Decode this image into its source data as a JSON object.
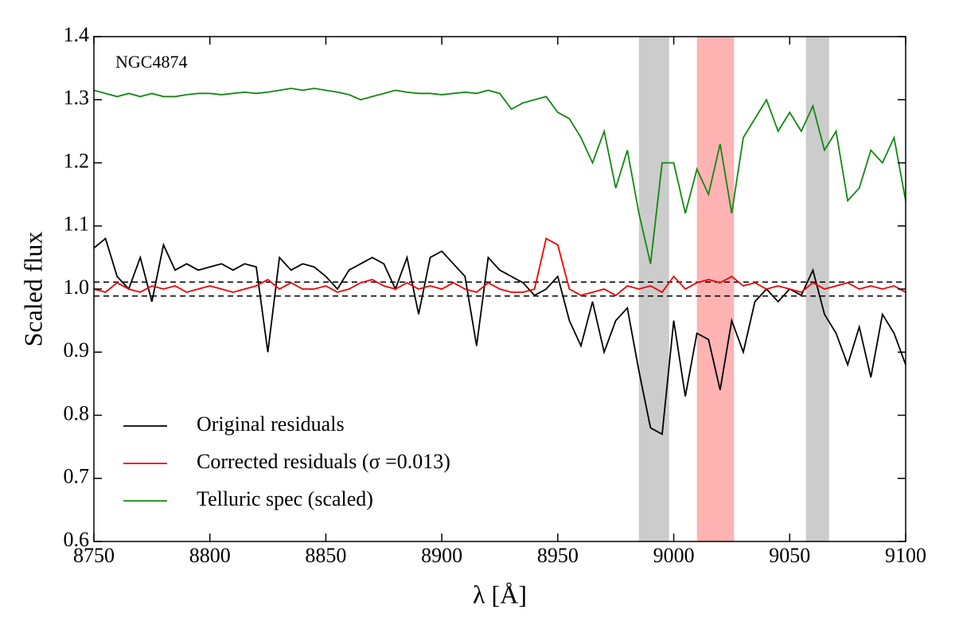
{
  "chart_data": {
    "type": "line",
    "annotation": "NGC4874",
    "xlabel": "λ [Å]",
    "ylabel": "Scaled flux",
    "x": [
      8750,
      8755,
      8760,
      8765,
      8770,
      8775,
      8780,
      8785,
      8790,
      8795,
      8800,
      8805,
      8810,
      8815,
      8820,
      8825,
      8830,
      8835,
      8840,
      8845,
      8850,
      8855,
      8860,
      8865,
      8870,
      8875,
      8880,
      8885,
      8890,
      8895,
      8900,
      8905,
      8910,
      8915,
      8920,
      8925,
      8930,
      8935,
      8940,
      8945,
      8950,
      8955,
      8960,
      8965,
      8970,
      8975,
      8980,
      8985,
      8990,
      8995,
      9000,
      9005,
      9010,
      9015,
      9020,
      9025,
      9030,
      9035,
      9040,
      9045,
      9050,
      9055,
      9060,
      9065,
      9070,
      9075,
      9080,
      9085,
      9090,
      9095,
      9100
    ],
    "series": [
      {
        "name": "Original residuals",
        "color": "#000000",
        "values": [
          1.065,
          1.08,
          1.02,
          1.0,
          1.05,
          0.98,
          1.07,
          1.03,
          1.04,
          1.03,
          1.035,
          1.04,
          1.03,
          1.04,
          1.035,
          0.9,
          1.05,
          1.03,
          1.04,
          1.035,
          1.02,
          1.0,
          1.03,
          1.04,
          1.05,
          1.04,
          1.0,
          1.05,
          0.96,
          1.05,
          1.06,
          1.04,
          1.02,
          0.91,
          1.05,
          1.03,
          1.02,
          1.01,
          0.99,
          1.0,
          1.02,
          0.95,
          0.91,
          0.98,
          0.9,
          0.95,
          0.97,
          0.87,
          0.78,
          0.77,
          0.95,
          0.83,
          0.93,
          0.92,
          0.84,
          0.95,
          0.9,
          0.98,
          1.0,
          0.98,
          1.0,
          0.99,
          1.03,
          0.96,
          0.93,
          0.88,
          0.94,
          0.86,
          0.96,
          0.93,
          0.88
        ]
      },
      {
        "name": "Corrected residuals (σ =0.013)",
        "color": "#ee0000",
        "values": [
          1.0,
          0.995,
          1.01,
          1.0,
          0.995,
          1.005,
          1.0,
          1.005,
          0.995,
          1.0,
          1.005,
          1.0,
          0.995,
          1.0,
          1.005,
          1.015,
          1.0,
          1.01,
          1.0,
          1.0,
          1.005,
          0.995,
          1.0,
          1.01,
          1.015,
          1.005,
          1.0,
          1.01,
          1.0,
          1.005,
          1.0,
          1.01,
          1.0,
          0.995,
          1.01,
          1.0,
          0.995,
          0.995,
          1.0,
          1.08,
          1.07,
          1.0,
          0.99,
          0.995,
          1.0,
          0.99,
          1.005,
          1.0,
          1.005,
          0.995,
          1.02,
          1.0,
          1.01,
          1.015,
          1.01,
          1.02,
          1.005,
          1.01,
          1.0,
          1.005,
          1.0,
          0.995,
          1.01,
          1.0,
          1.005,
          1.01,
          1.0,
          1.005,
          1.0,
          1.005,
          0.995
        ]
      },
      {
        "name": "Telluric spec (scaled)",
        "color": "#118811",
        "values": [
          1.315,
          1.31,
          1.305,
          1.31,
          1.305,
          1.31,
          1.305,
          1.305,
          1.308,
          1.31,
          1.31,
          1.308,
          1.31,
          1.312,
          1.31,
          1.312,
          1.315,
          1.318,
          1.315,
          1.318,
          1.315,
          1.312,
          1.308,
          1.3,
          1.305,
          1.31,
          1.315,
          1.312,
          1.31,
          1.31,
          1.308,
          1.31,
          1.312,
          1.31,
          1.315,
          1.31,
          1.285,
          1.295,
          1.3,
          1.305,
          1.28,
          1.27,
          1.24,
          1.2,
          1.25,
          1.16,
          1.22,
          1.12,
          1.04,
          1.2,
          1.2,
          1.12,
          1.19,
          1.15,
          1.23,
          1.12,
          1.24,
          1.27,
          1.3,
          1.25,
          1.28,
          1.25,
          1.29,
          1.22,
          1.25,
          1.14,
          1.16,
          1.22,
          1.2,
          1.24,
          1.14
        ]
      }
    ],
    "bands": [
      {
        "x": [
          8985,
          8998
        ],
        "color": "#cccccc"
      },
      {
        "x": [
          9010,
          9026
        ],
        "color": "#ffb3b3"
      },
      {
        "x": [
          9057,
          9067
        ],
        "color": "#cccccc"
      }
    ],
    "hlines": [
      1.011,
      0.989
    ],
    "xlim": [
      8750,
      9100
    ],
    "ylim": [
      0.6,
      1.4
    ],
    "xticks": [
      8750,
      8800,
      8850,
      8900,
      8950,
      9000,
      9050,
      9100
    ],
    "yticks": [
      0.6,
      0.7,
      0.8,
      0.9,
      {
        "value": 1.0,
        "label": "1.0"
      },
      1.1,
      1.2,
      1.3,
      1.4
    ],
    "legend": "lower left"
  }
}
